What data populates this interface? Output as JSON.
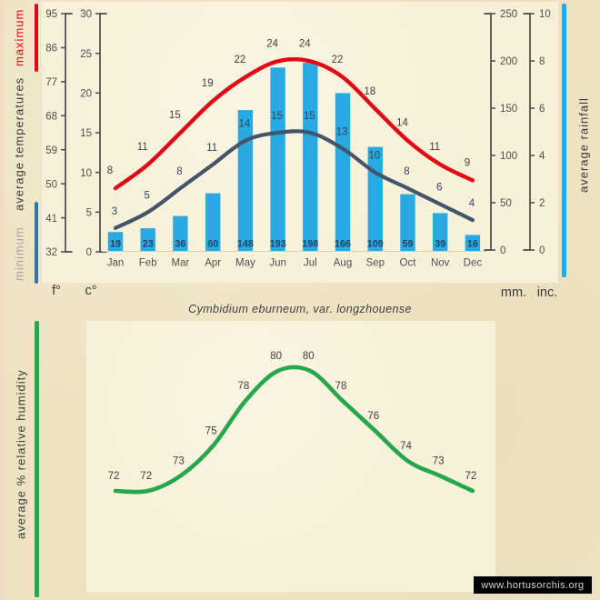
{
  "title": "Cymbidium eburneum, var. longzhouense",
  "watermark": "www.hortusorchis.org",
  "colors": {
    "background": "#eee3c1",
    "plot_background": "#f8f1da",
    "max_line": "#e30613",
    "min_line": "#44546a",
    "min_legend_line": "#2e75b6",
    "rain_bar": "#29a9e1",
    "humidity_line": "#27a74d",
    "axis": "#4a4a4a",
    "maximum_text": "#e30613",
    "minimum_text": "#a3a3a3",
    "rail_text": "#3b3b3b",
    "watermark_bg": "#000000",
    "watermark_text": "#d4d4d4"
  },
  "chart_data": [
    {
      "type": "bar",
      "subtype": "combo-bar-line",
      "categories": [
        "Jan",
        "Feb",
        "Mar",
        "Apr",
        "May",
        "Jun",
        "Jul",
        "Aug",
        "Sep",
        "Oct",
        "Nov",
        "Dec"
      ],
      "series": [
        {
          "name": "maximum",
          "type": "line",
          "unit": "°C",
          "color": "#e30613",
          "values": [
            8,
            11,
            15,
            19,
            22,
            24,
            24,
            22,
            18,
            14,
            11,
            9
          ]
        },
        {
          "name": "minimum",
          "type": "line",
          "unit": "°C",
          "color": "#44546a",
          "values": [
            3,
            5,
            8,
            11,
            14,
            15,
            15,
            13,
            10,
            8,
            6,
            4
          ]
        },
        {
          "name": "average rainfall",
          "type": "bar",
          "unit": "mm",
          "color": "#29a9e1",
          "values": [
            19,
            23,
            36,
            60,
            148,
            193,
            198,
            166,
            109,
            59,
            39,
            16
          ]
        }
      ],
      "y_left_title": "average temperatures",
      "y_right_title": "average rainfall",
      "axes": {
        "fahrenheit": {
          "unit": "f°",
          "ticks": [
            95,
            86,
            77,
            68,
            59,
            50,
            41,
            32
          ]
        },
        "celsius": {
          "unit": "c°",
          "ticks": [
            30,
            25,
            20,
            15,
            10,
            5,
            0
          ]
        },
        "mm": {
          "unit": "mm.",
          "ticks": [
            250,
            200,
            150,
            100,
            50,
            0
          ]
        },
        "inches": {
          "unit": "inc.",
          "ticks": [
            10,
            8,
            6,
            4,
            2,
            0
          ]
        }
      },
      "ylim_celsius": [
        0,
        30
      ],
      "ylim_mm": [
        0,
        250
      ],
      "grid": false,
      "legend_position": "left-rail"
    },
    {
      "type": "line",
      "categories": [
        "Jan",
        "Feb",
        "Mar",
        "Apr",
        "May",
        "Jun",
        "Jul",
        "Aug",
        "Sep",
        "Oct",
        "Nov",
        "Dec"
      ],
      "series": [
        {
          "name": "average % relative humidity",
          "color": "#27a74d",
          "values": [
            72,
            72,
            73,
            75,
            78,
            80,
            80,
            78,
            76,
            74,
            73,
            72
          ]
        }
      ],
      "ylim": [
        70,
        82
      ],
      "grid": false,
      "legend_position": "left-rail"
    }
  ]
}
